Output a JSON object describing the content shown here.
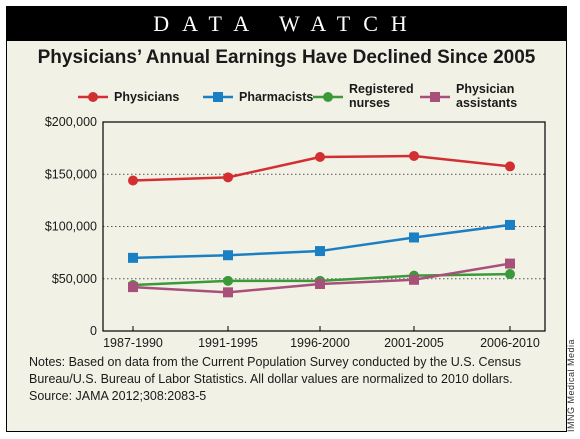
{
  "banner": "DATA WATCH",
  "credit": "IMNG Medical Media",
  "chart_data": {
    "type": "line",
    "title": "Physicians’ Annual Earnings Have Declined Since 2005",
    "categories": [
      "1987-1990",
      "1991-1995",
      "1996-2000",
      "2001-2005",
      "2006-2010"
    ],
    "ylim": [
      0,
      200000
    ],
    "yticks": [
      0,
      50000,
      100000,
      150000,
      200000
    ],
    "ytick_labels": [
      "0",
      "$50,000",
      "$100,000",
      "$150,000",
      "$200,000"
    ],
    "grid": "dotted horizontal",
    "legend_position": "top",
    "series": [
      {
        "name": "Physicians",
        "legend_lines": [
          "Physicians"
        ],
        "color": "#d32f32",
        "marker": "circle",
        "values": [
          144000,
          147000,
          166500,
          167500,
          157500
        ]
      },
      {
        "name": "Pharmacists",
        "legend_lines": [
          "Pharmacists"
        ],
        "color": "#1b7fc4",
        "marker": "square",
        "values": [
          70000,
          72500,
          76500,
          89500,
          101500
        ]
      },
      {
        "name": "Registered nurses",
        "legend_lines": [
          "Registered",
          "nurses"
        ],
        "color": "#3a9a3a",
        "marker": "circle",
        "values": [
          44000,
          48000,
          48000,
          53000,
          54500
        ]
      },
      {
        "name": "Physician assistants",
        "legend_lines": [
          "Physician",
          "assistants"
        ],
        "color": "#a8507a",
        "marker": "square",
        "values": [
          42000,
          37000,
          45000,
          49000,
          64500
        ]
      }
    ]
  },
  "notes": {
    "line1": "Notes: Based on data from the Current Population Survey conducted by the U.S. Census",
    "line2": "Bureau/U.S. Bureau of Labor Statistics. All dollar values are normalized to 2010 dollars.",
    "source": "Source: JAMA 2012;308:2083-5"
  }
}
